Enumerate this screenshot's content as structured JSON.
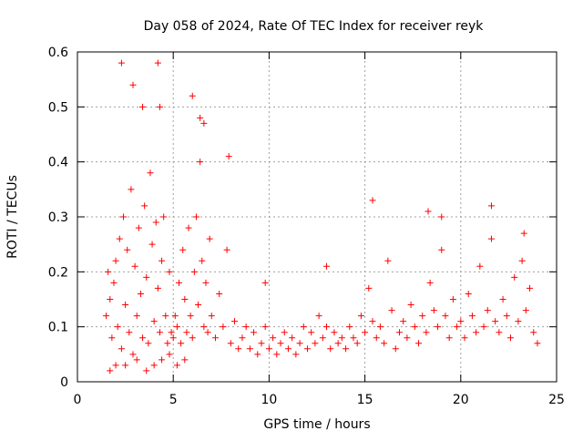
{
  "chart_data": {
    "type": "scatter",
    "title": "Day 058 of 2024, Rate Of TEC Index for receiver reyk",
    "xlabel": "GPS time / hours",
    "ylabel": "ROTI / TECUs",
    "xlim": [
      0,
      25
    ],
    "ylim": [
      0,
      0.6
    ],
    "x_ticks": [
      0,
      5,
      10,
      15,
      20,
      25
    ],
    "x_tick_labels": [
      "0",
      "5",
      "10",
      "15",
      "20",
      "25"
    ],
    "y_ticks": [
      0,
      0.1,
      0.2,
      0.3,
      0.4,
      0.5,
      0.6
    ],
    "y_tick_labels": [
      "0",
      "0.1",
      "0.2",
      "0.3",
      "0.4",
      "0.5",
      "0.6"
    ],
    "grid": true,
    "marker": "+",
    "series": [
      {
        "name": "ROTI",
        "color": "#ff0000",
        "x": [
          1.5,
          1.6,
          1.7,
          1.8,
          1.9,
          2.0,
          2.1,
          2.2,
          2.3,
          2.4,
          2.5,
          2.6,
          2.7,
          2.8,
          2.9,
          3.0,
          3.1,
          3.2,
          3.3,
          3.4,
          3.5,
          3.6,
          3.7,
          3.8,
          3.9,
          4.0,
          4.1,
          4.2,
          4.3,
          4.4,
          4.5,
          4.6,
          4.7,
          4.8,
          4.9,
          5.0,
          5.1,
          5.2,
          5.3,
          5.4,
          5.5,
          5.6,
          5.7,
          5.8,
          5.9,
          6.0,
          6.1,
          6.2,
          6.3,
          6.4,
          6.5,
          6.6,
          6.7,
          6.8,
          6.9,
          7.0,
          7.2,
          7.4,
          7.6,
          7.8,
          8.0,
          8.2,
          8.4,
          8.6,
          8.8,
          9.0,
          9.2,
          9.4,
          9.6,
          9.8,
          10.0,
          10.2,
          10.4,
          10.6,
          10.8,
          11.0,
          11.2,
          11.4,
          11.6,
          11.8,
          12.0,
          12.2,
          12.4,
          12.6,
          12.8,
          13.0,
          13.2,
          13.4,
          13.6,
          13.8,
          14.0,
          14.2,
          14.4,
          14.6,
          14.8,
          15.0,
          15.2,
          15.4,
          15.6,
          15.8,
          16.0,
          16.2,
          16.4,
          16.6,
          16.8,
          17.0,
          17.2,
          17.4,
          17.6,
          17.8,
          18.0,
          18.2,
          18.4,
          18.6,
          18.8,
          19.0,
          19.2,
          19.4,
          19.6,
          19.8,
          20.0,
          20.2,
          20.4,
          20.6,
          20.8,
          21.0,
          21.2,
          21.4,
          21.6,
          21.8,
          22.0,
          22.2,
          22.4,
          22.6,
          22.8,
          23.0,
          23.2,
          23.4,
          23.6,
          23.8,
          24.0,
          2.3,
          4.2,
          2.9,
          3.4,
          6.0,
          4.3,
          1.7,
          2.0,
          2.5,
          3.1,
          3.6,
          4.0,
          4.4,
          4.8,
          5.2,
          5.6,
          6.4,
          6.6,
          7.9,
          15.4,
          18.3,
          19.0,
          21.6,
          23.3,
          13.0,
          9.8
        ],
        "y": [
          0.12,
          0.2,
          0.15,
          0.08,
          0.18,
          0.22,
          0.1,
          0.26,
          0.06,
          0.3,
          0.14,
          0.24,
          0.09,
          0.35,
          0.05,
          0.21,
          0.12,
          0.28,
          0.16,
          0.08,
          0.32,
          0.19,
          0.07,
          0.38,
          0.25,
          0.11,
          0.29,
          0.17,
          0.09,
          0.22,
          0.3,
          0.12,
          0.07,
          0.2,
          0.09,
          0.08,
          0.12,
          0.1,
          0.18,
          0.07,
          0.24,
          0.15,
          0.09,
          0.28,
          0.12,
          0.08,
          0.2,
          0.3,
          0.14,
          0.4,
          0.22,
          0.1,
          0.18,
          0.09,
          0.26,
          0.12,
          0.08,
          0.16,
          0.1,
          0.24,
          0.07,
          0.11,
          0.06,
          0.08,
          0.1,
          0.06,
          0.09,
          0.05,
          0.07,
          0.1,
          0.06,
          0.08,
          0.05,
          0.07,
          0.09,
          0.06,
          0.08,
          0.05,
          0.07,
          0.1,
          0.06,
          0.09,
          0.07,
          0.12,
          0.08,
          0.1,
          0.06,
          0.09,
          0.07,
          0.08,
          0.06,
          0.1,
          0.08,
          0.07,
          0.12,
          0.09,
          0.17,
          0.11,
          0.08,
          0.1,
          0.07,
          0.22,
          0.13,
          0.06,
          0.09,
          0.11,
          0.08,
          0.14,
          0.1,
          0.07,
          0.12,
          0.09,
          0.18,
          0.13,
          0.1,
          0.24,
          0.12,
          0.08,
          0.15,
          0.1,
          0.11,
          0.08,
          0.16,
          0.12,
          0.09,
          0.21,
          0.1,
          0.13,
          0.26,
          0.11,
          0.09,
          0.15,
          0.12,
          0.08,
          0.19,
          0.11,
          0.22,
          0.13,
          0.17,
          0.09,
          0.07,
          0.58,
          0.58,
          0.54,
          0.5,
          0.52,
          0.5,
          0.02,
          0.03,
          0.03,
          0.04,
          0.02,
          0.03,
          0.04,
          0.05,
          0.03,
          0.04,
          0.48,
          0.47,
          0.41,
          0.33,
          0.31,
          0.3,
          0.32,
          0.27,
          0.21,
          0.18
        ]
      }
    ]
  }
}
